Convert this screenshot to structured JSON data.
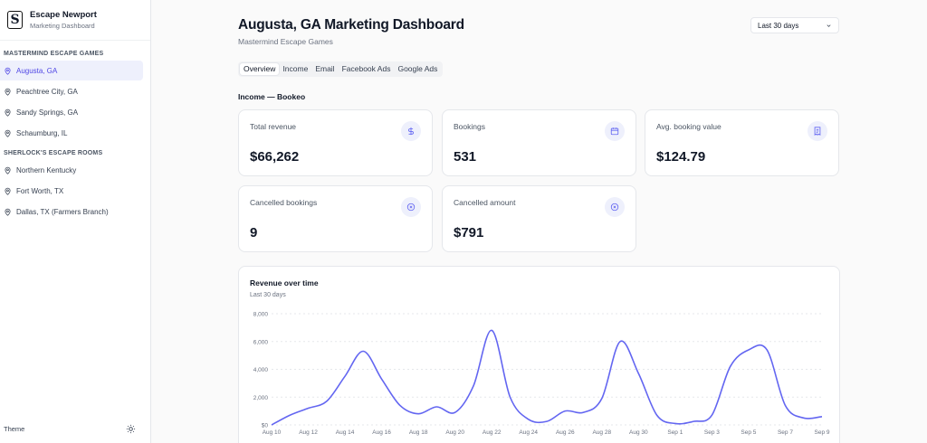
{
  "sidebar": {
    "brand_name": "Escape Newport",
    "brand_sub": "Marketing Dashboard",
    "logo_letter": "S",
    "groups": [
      {
        "label": "Mastermind Escape Games",
        "items": [
          "Augusta, GA",
          "Peachtree City, GA",
          "Sandy Springs, GA",
          "Schaumburg, IL"
        ]
      },
      {
        "label": "Sherlock's Escape Rooms",
        "items": [
          "Northern Kentucky",
          "Fort Worth, TX",
          "Dallas, TX (Farmers Branch)"
        ]
      }
    ],
    "active_item": "Augusta, GA",
    "theme_label": "Theme"
  },
  "header": {
    "title": "Augusta, GA Marketing Dashboard",
    "subtitle": "Mastermind Escape Games",
    "date_range": "Last 30 days"
  },
  "tabs": [
    "Overview",
    "Income",
    "Email",
    "Facebook Ads",
    "Google Ads"
  ],
  "active_tab": "Overview",
  "section_title": "Income — Bookeo",
  "cards": [
    {
      "label": "Total revenue",
      "value": "$66,262",
      "icon": "dollar-icon"
    },
    {
      "label": "Bookings",
      "value": "531",
      "icon": "calendar-icon"
    },
    {
      "label": "Avg. booking value",
      "value": "$124.79",
      "icon": "receipt-icon"
    },
    {
      "label": "Cancelled bookings",
      "value": "9",
      "icon": "x-circle-icon"
    },
    {
      "label": "Cancelled amount",
      "value": "$791",
      "icon": "x-circle-icon"
    }
  ],
  "accent_color": "#6366f1",
  "chart_data": {
    "type": "line",
    "title": "Revenue over time",
    "subtitle": "Last 30 days",
    "ylim": [
      0,
      8000
    ],
    "yticks": [
      "$0",
      "2,000",
      "4,000",
      "6,000",
      "8,000"
    ],
    "xticks": [
      "Aug 10",
      "Aug 12",
      "Aug 14",
      "Aug 16",
      "Aug 18",
      "Aug 20",
      "Aug 22",
      "Aug 24",
      "Aug 26",
      "Aug 28",
      "Aug 30",
      "Sep 1",
      "Sep 3",
      "Sep 5",
      "Sep 7",
      "Sep 9"
    ],
    "x": [
      "Aug 10",
      "Aug 11",
      "Aug 12",
      "Aug 13",
      "Aug 14",
      "Aug 15",
      "Aug 16",
      "Aug 17",
      "Aug 18",
      "Aug 19",
      "Aug 20",
      "Aug 21",
      "Aug 22",
      "Aug 23",
      "Aug 24",
      "Aug 25",
      "Aug 26",
      "Aug 27",
      "Aug 28",
      "Aug 29",
      "Aug 30",
      "Aug 31",
      "Sep 1",
      "Sep 2",
      "Sep 3",
      "Sep 4",
      "Sep 5",
      "Sep 6",
      "Sep 7",
      "Sep 8",
      "Sep 9"
    ],
    "series": [
      {
        "values": [
          0,
          700,
          1200,
          1700,
          3500,
          5300,
          3300,
          1400,
          800,
          1300,
          900,
          2800,
          6800,
          2000,
          400,
          250,
          1000,
          900,
          1900,
          6000,
          3700,
          700,
          100,
          250,
          700,
          4200,
          5400,
          5400,
          1400,
          500,
          600
        ]
      }
    ],
    "grid": true,
    "color": "#6366f1"
  }
}
